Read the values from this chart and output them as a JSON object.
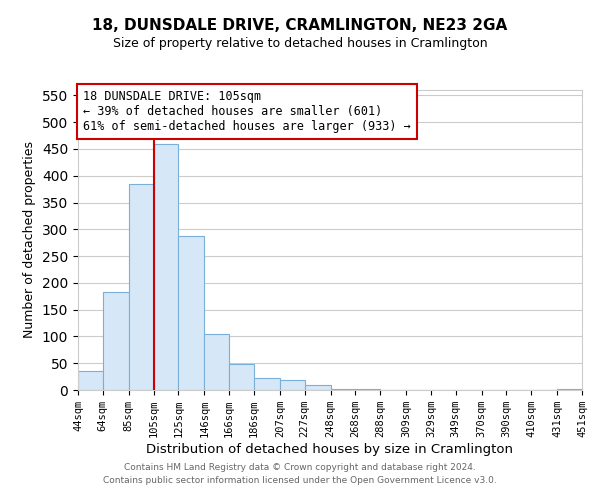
{
  "title": "18, DUNSDALE DRIVE, CRAMLINGTON, NE23 2GA",
  "subtitle": "Size of property relative to detached houses in Cramlington",
  "xlabel": "Distribution of detached houses by size in Cramlington",
  "ylabel": "Number of detached properties",
  "bar_edges": [
    44,
    64,
    85,
    105,
    125,
    146,
    166,
    186,
    207,
    227,
    248,
    268,
    288,
    309,
    329,
    349,
    370,
    390,
    410,
    431,
    451
  ],
  "bar_heights": [
    35,
    183,
    385,
    460,
    288,
    105,
    49,
    23,
    18,
    10,
    2,
    1,
    0,
    0,
    0,
    0,
    0,
    0,
    0,
    1
  ],
  "bar_color": "#d6e8f7",
  "bar_edge_color": "#7ab0d8",
  "vline_x": 105,
  "vline_color": "#cc0000",
  "ylim": [
    0,
    560
  ],
  "yticks": [
    0,
    50,
    100,
    150,
    200,
    250,
    300,
    350,
    400,
    450,
    500,
    550
  ],
  "annotation_line1": "18 DUNSDALE DRIVE: 105sqm",
  "annotation_line2": "← 39% of detached houses are smaller (601)",
  "annotation_line3": "61% of semi-detached houses are larger (933) →",
  "footer_line1": "Contains HM Land Registry data © Crown copyright and database right 2024.",
  "footer_line2": "Contains public sector information licensed under the Open Government Licence v3.0.",
  "tick_labels": [
    "44sqm",
    "64sqm",
    "85sqm",
    "105sqm",
    "125sqm",
    "146sqm",
    "166sqm",
    "186sqm",
    "207sqm",
    "227sqm",
    "248sqm",
    "268sqm",
    "288sqm",
    "309sqm",
    "329sqm",
    "349sqm",
    "370sqm",
    "390sqm",
    "410sqm",
    "431sqm",
    "451sqm"
  ],
  "background_color": "#ffffff",
  "grid_color": "#cccccc"
}
